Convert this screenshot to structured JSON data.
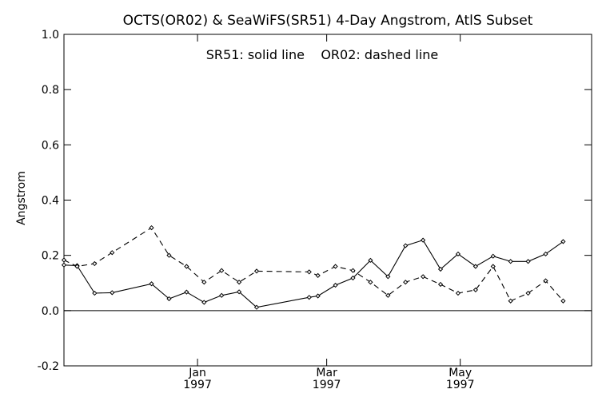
{
  "chart_data": {
    "type": "line",
    "title": "OCTS(OR02) & SeaWiFS(SR51) 4-Day Angstrom, AtlS Subset",
    "annotation": "SR51: solid line    OR02: dashed line",
    "xlabel": "",
    "ylabel": "Angstrom",
    "x_start": "1996-11-01",
    "x_end": "1997-06-30",
    "ylim": [
      -0.2,
      1.0
    ],
    "yticks": [
      "-0.2",
      "0.0",
      "0.2",
      "0.4",
      "0.6",
      "0.8",
      "1.0"
    ],
    "xticks": [
      {
        "date": "1997-01-01",
        "month": "Jan",
        "year": "1997"
      },
      {
        "date": "1997-03-01",
        "month": "Mar",
        "year": "1997"
      },
      {
        "date": "1997-05-01",
        "month": "May",
        "year": "1997"
      }
    ],
    "zero_line": true,
    "grid": false,
    "series": [
      {
        "name": "SR51",
        "style": "solid",
        "color": "#000000",
        "points": [
          [
            "1996-11-01",
            0.165
          ],
          [
            "1996-11-07",
            0.163
          ],
          [
            "1996-11-15",
            0.063
          ],
          [
            "1996-11-23",
            0.065
          ],
          [
            "1996-12-11",
            0.097
          ],
          [
            "1996-12-19",
            0.043
          ],
          [
            "1996-12-27",
            0.067
          ],
          [
            "1997-01-04",
            0.03
          ],
          [
            "1997-01-12",
            0.055
          ],
          [
            "1997-01-20",
            0.068
          ],
          [
            "1997-01-28",
            0.012
          ],
          [
            "1997-02-21",
            0.048
          ],
          [
            "1997-02-25",
            0.053
          ],
          [
            "1997-03-05",
            0.092
          ],
          [
            "1997-03-13",
            0.118
          ],
          [
            "1997-03-21",
            0.182
          ],
          [
            "1997-03-29",
            0.123
          ],
          [
            "1997-04-06",
            0.235
          ],
          [
            "1997-04-14",
            0.255
          ],
          [
            "1997-04-22",
            0.15
          ],
          [
            "1997-04-30",
            0.205
          ],
          [
            "1997-05-08",
            0.16
          ],
          [
            "1997-05-16",
            0.197
          ],
          [
            "1997-05-24",
            0.178
          ],
          [
            "1997-06-01",
            0.178
          ],
          [
            "1997-06-09",
            0.205
          ],
          [
            "1997-06-17",
            0.25
          ]
        ]
      },
      {
        "name": "OR02",
        "style": "dashed",
        "color": "#000000",
        "points": [
          [
            "1996-11-01",
            0.183
          ],
          [
            "1996-11-07",
            0.16
          ],
          [
            "1996-11-15",
            0.17
          ],
          [
            "1996-11-23",
            0.21
          ],
          [
            "1996-12-11",
            0.3
          ],
          [
            "1996-12-19",
            0.2
          ],
          [
            "1996-12-27",
            0.16
          ],
          [
            "1997-01-04",
            0.103
          ],
          [
            "1997-01-12",
            0.145
          ],
          [
            "1997-01-20",
            0.103
          ],
          [
            "1997-01-28",
            0.143
          ],
          [
            "1997-02-21",
            0.14
          ],
          [
            "1997-02-25",
            0.127
          ],
          [
            "1997-03-05",
            0.16
          ],
          [
            "1997-03-13",
            0.145
          ],
          [
            "1997-03-21",
            0.103
          ],
          [
            "1997-03-29",
            0.055
          ],
          [
            "1997-04-06",
            0.103
          ],
          [
            "1997-04-14",
            0.123
          ],
          [
            "1997-04-22",
            0.095
          ],
          [
            "1997-04-30",
            0.063
          ],
          [
            "1997-05-08",
            0.075
          ],
          [
            "1997-05-16",
            0.16
          ],
          [
            "1997-05-24",
            0.035
          ],
          [
            "1997-06-01",
            0.063
          ],
          [
            "1997-06-09",
            0.108
          ],
          [
            "1997-06-17",
            0.035
          ]
        ]
      }
    ]
  }
}
